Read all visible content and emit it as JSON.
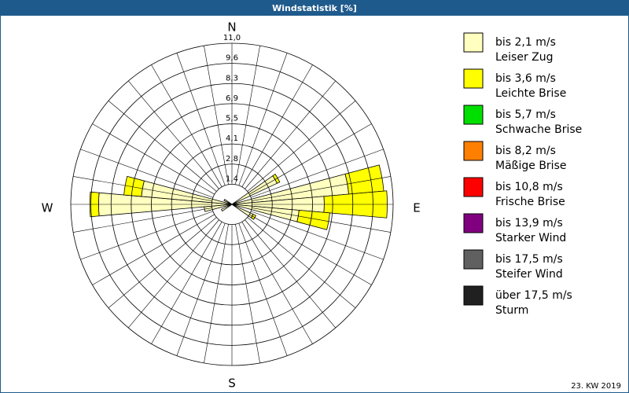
{
  "chart_data": {
    "type": "windrose",
    "title": "Windstatistik [%]",
    "footer": "23. KW 2019",
    "directions": [
      "N",
      "E",
      "S",
      "W"
    ],
    "sector_width": 10,
    "x": [
      60,
      80,
      90,
      100,
      120,
      240,
      260,
      270,
      280,
      300
    ],
    "ylim": [
      0,
      11
    ],
    "yticks": [
      {
        "value": 1.375,
        "label": "1,4"
      },
      {
        "value": 2.75,
        "label": "2,8"
      },
      {
        "value": 4.125,
        "label": "4,1"
      },
      {
        "value": 5.5,
        "label": "5,5"
      },
      {
        "value": 6.875,
        "label": "6,9"
      },
      {
        "value": 8.25,
        "label": "8,3"
      },
      {
        "value": 9.625,
        "label": "9,6"
      },
      {
        "value": 11,
        "label": "11,0"
      }
    ],
    "series": [
      {
        "name": "bis 2,1 m/s",
        "description": "Leiser Zug",
        "color": "#ffffc0",
        "values": [
          3.4,
          8.0,
          6.3,
          4.6,
          1.6,
          0.8,
          1.9,
          9.1,
          6.2,
          0.6
        ]
      },
      {
        "name": "bis 3,6 m/s",
        "description": "Leichte Brise",
        "color": "#ffff00",
        "values": [
          0.2,
          2.4,
          4.3,
          2.1,
          0.2,
          0,
          0,
          0.6,
          1.2,
          0
        ]
      },
      {
        "name": "bis 5,7 m/s",
        "description": "Schwache Brise",
        "color": "#00e000",
        "values": [
          0,
          0,
          0,
          0,
          0,
          0,
          0,
          0,
          0,
          0
        ]
      },
      {
        "name": "bis 8,2 m/s",
        "description": "Mäßige Brise",
        "color": "#ff8000",
        "values": [
          0,
          0,
          0,
          0,
          0,
          0,
          0,
          0,
          0,
          0
        ]
      },
      {
        "name": "bis 10,8 m/s",
        "description": "Frische Brise",
        "color": "#ff0000",
        "values": [
          0,
          0,
          0,
          0,
          0,
          0,
          0,
          0,
          0,
          0
        ]
      },
      {
        "name": "bis 13,9 m/s",
        "description": "Starker Wind",
        "color": "#800080",
        "values": [
          0,
          0,
          0,
          0,
          0,
          0,
          0,
          0,
          0,
          0
        ]
      },
      {
        "name": "bis 17,5 m/s",
        "description": "Steifer Wind",
        "color": "#606060",
        "values": [
          0,
          0,
          0,
          0,
          0,
          0,
          0,
          0,
          0,
          0
        ]
      },
      {
        "name": "über 17,5 m/s",
        "description": "Sturm",
        "color": "#202020",
        "values": [
          0,
          0,
          0,
          0,
          0,
          0,
          0,
          0,
          0,
          0
        ]
      }
    ]
  }
}
